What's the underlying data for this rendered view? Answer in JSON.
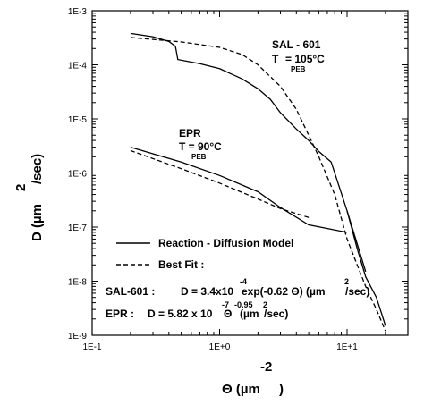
{
  "chart_data": {
    "type": "line",
    "x_scale": "log",
    "y_scale": "log",
    "xlim": [
      0.1,
      30
    ],
    "ylim": [
      1e-09,
      0.001
    ],
    "x_ticks": [
      {
        "value": 0.1,
        "label": "1E-1"
      },
      {
        "value": 1,
        "label": "1E+0"
      },
      {
        "value": 10,
        "label": "1E+1"
      }
    ],
    "y_ticks": [
      {
        "value": 0.001,
        "label": "1E-3"
      },
      {
        "value": 0.0001,
        "label": "1E-4"
      },
      {
        "value": 1e-05,
        "label": "1E-5"
      },
      {
        "value": 1e-06,
        "label": "1E-6"
      },
      {
        "value": 1e-07,
        "label": "1E-7"
      },
      {
        "value": 1e-08,
        "label": "1E-8"
      },
      {
        "value": 1e-09,
        "label": "1E-9"
      }
    ],
    "xlabel": {
      "main": "Θ (µm",
      "close": ")",
      "exp": "-2"
    },
    "ylabel": {
      "main": "D (µm",
      "close": "/sec)",
      "exp": "2"
    },
    "legend": {
      "placement": "bottom-left",
      "entries": [
        {
          "label": "Reaction - Diffusion Model",
          "style": "solid"
        },
        {
          "label": "Best Fit :",
          "style": "dashed"
        }
      ]
    },
    "annotations": {
      "sal_label": "SAL - 601",
      "sal_temp": "T",
      "sal_temp_val": "= 105°C",
      "sal_sub": "PEB",
      "epr_label": "EPR",
      "epr_temp": "T = 90°C",
      "epr_sub": "PEB",
      "sal_eq_prefix": "SAL-601 :",
      "sal_eq_body": "D = 3.4x10",
      "sal_eq_exp": "-4",
      "sal_eq_rest": "exp(-0.62 Θ)  (µm",
      "sal_eq_exp2": "2",
      "sal_eq_end": "/sec)",
      "epr_eq_prefix": "EPR :",
      "epr_eq_body": "D = 5.82 x 10",
      "epr_eq_exp": "-7",
      "epr_eq_theta": "Θ",
      "epr_eq_exp2": "-0.95",
      "epr_eq_unit": "(µm",
      "epr_eq_exp3": "2",
      "epr_eq_end": "/sec)"
    },
    "series": [
      {
        "style": "solid",
        "points": [
          [
            0.2,
            0.00038
          ],
          [
            0.3,
            0.00033
          ],
          [
            0.4,
            0.00027
          ],
          [
            0.45,
            0.00022
          ],
          [
            0.47,
            0.000125
          ],
          [
            0.7,
            0.000105
          ],
          [
            1.0,
            8.5e-05
          ],
          [
            1.5,
            5.5e-05
          ],
          [
            2.0,
            3.6e-05
          ],
          [
            2.5,
            2.3e-05
          ],
          [
            3.0,
            1.3e-05
          ],
          [
            4.0,
            6.5e-06
          ],
          [
            5.0,
            4e-06
          ],
          [
            6.0,
            2.5e-06
          ],
          [
            7.5,
            1.6e-06
          ],
          [
            10,
            2e-07
          ],
          [
            14,
            1.5e-08
          ]
        ]
      },
      {
        "style": "dashed",
        "points": [
          [
            0.2,
            0.00032
          ],
          [
            0.5,
            0.000265
          ],
          [
            1.0,
            0.00021
          ],
          [
            1.5,
            0.000155
          ],
          [
            2.0,
            0.0001
          ],
          [
            3.0,
            4e-05
          ],
          [
            4.0,
            1.5e-05
          ],
          [
            5.0,
            5e-06
          ],
          [
            6.0,
            2e-06
          ],
          [
            8.0,
            4e-07
          ],
          [
            10,
            6e-08
          ],
          [
            12,
            2e-08
          ],
          [
            14,
            8e-09
          ],
          [
            17,
            3e-09
          ],
          [
            20,
            1.2e-09
          ]
        ]
      },
      {
        "style": "solid",
        "points": [
          [
            0.2,
            3e-06
          ],
          [
            0.5,
            1.6e-06
          ],
          [
            1.0,
            9e-07
          ],
          [
            2.0,
            4.5e-07
          ],
          [
            3.0,
            2.3e-07
          ],
          [
            5.0,
            1.1e-07
          ],
          [
            10,
            8e-08
          ]
        ]
      },
      {
        "style": "dashed",
        "points": [
          [
            0.2,
            2.6e-06
          ],
          [
            0.5,
            1.2e-06
          ],
          [
            1.0,
            6.5e-07
          ],
          [
            2.0,
            3.3e-07
          ],
          [
            3.0,
            2.2e-07
          ],
          [
            5.0,
            1.5e-07
          ]
        ]
      },
      {
        "style": "solid",
        "points": [
          [
            10,
            2e-07
          ],
          [
            12,
            4e-08
          ],
          [
            14,
            1.2e-08
          ],
          [
            17,
            5e-09
          ],
          [
            20,
            1.5e-09
          ]
        ]
      }
    ]
  }
}
